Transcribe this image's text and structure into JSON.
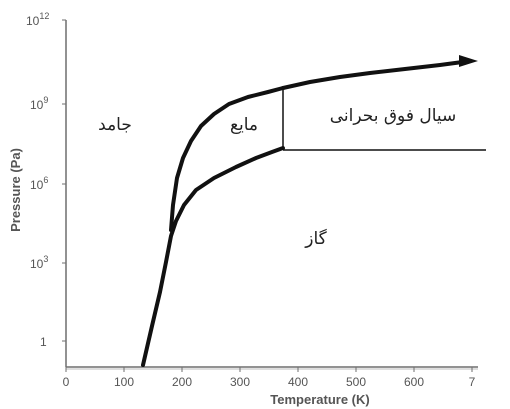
{
  "axes": {
    "y_title": "Pressure (Pa)",
    "x_title": "Temperature (K)",
    "y_ticks": [
      {
        "base": "10",
        "exp": "12"
      },
      {
        "base": "10",
        "exp": "9"
      },
      {
        "base": "10",
        "exp": "6"
      },
      {
        "base": "10",
        "exp": "3"
      },
      {
        "base": "1",
        "exp": ""
      }
    ],
    "x_ticks": [
      "0",
      "100",
      "200",
      "300",
      "400",
      "500",
      "600",
      "7"
    ]
  },
  "regions": {
    "solid": "جامد",
    "liquid": "مایع",
    "supercritical": "سیال فوق بحرانی",
    "gas": "گاز"
  },
  "colors": {
    "curve": "#111111",
    "axis": "#6f6f6f",
    "tick_text": "#555555"
  }
}
